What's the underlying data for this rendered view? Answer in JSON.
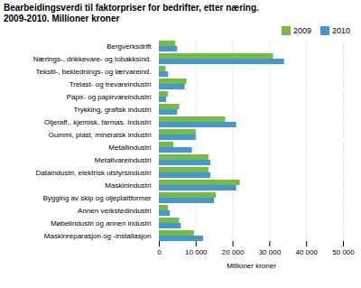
{
  "chart_data": {
    "type": "bar",
    "orientation": "horizontal",
    "title": "Bearbeidingsverdi til faktorpriser for bedrifter, etter næring.",
    "subtitle": "2009-2010. Millioner kroner",
    "categories": [
      "Bergverksdrift",
      "Nærings-, drikkevare- og tobakksind.",
      "Tekstil-, beklednings- og lærvareind.",
      "Trelast- og trevareindustri",
      "Papir- og papirvareindustri",
      "Trykking, grafisk industri",
      "Oljeraff., kjemisk, farmas. Industri",
      "Gummi, plast, mineralsk industri",
      "Metallindustri",
      "Metallvareindustri",
      "Dataindustri, elektrisk utstyrsindustri",
      "Maskinindustri",
      "Bygging av skip og oljeplattformer",
      "Annen verkstedindustri",
      "Møbelindustri og annen industri",
      "Maskinreparasjon og -installasjon"
    ],
    "series": [
      {
        "name": "2009",
        "color": "#77bb44",
        "values": [
          4500,
          31000,
          1800,
          7500,
          2500,
          5500,
          18000,
          10000,
          4000,
          13500,
          13500,
          22000,
          15500,
          2500,
          5500,
          9500
        ]
      },
      {
        "name": "2010",
        "color": "#4499cc",
        "values": [
          5000,
          34000,
          2500,
          7000,
          2000,
          5000,
          21000,
          10000,
          9000,
          14000,
          14000,
          21000,
          15000,
          3000,
          6000,
          12000
        ]
      }
    ],
    "xlabel": "Millioner kroner",
    "xlim": [
      0,
      50000
    ],
    "xticks": [
      0,
      {
        "value": 10000,
        "label": "10 000"
      },
      {
        "value": 20000,
        "label": "20 000"
      },
      {
        "value": 30000,
        "label": "30 000"
      },
      {
        "value": 40000,
        "label": "40 000"
      },
      {
        "value": 50000,
        "label": "50 000"
      }
    ],
    "grid": true,
    "legend": "right"
  }
}
